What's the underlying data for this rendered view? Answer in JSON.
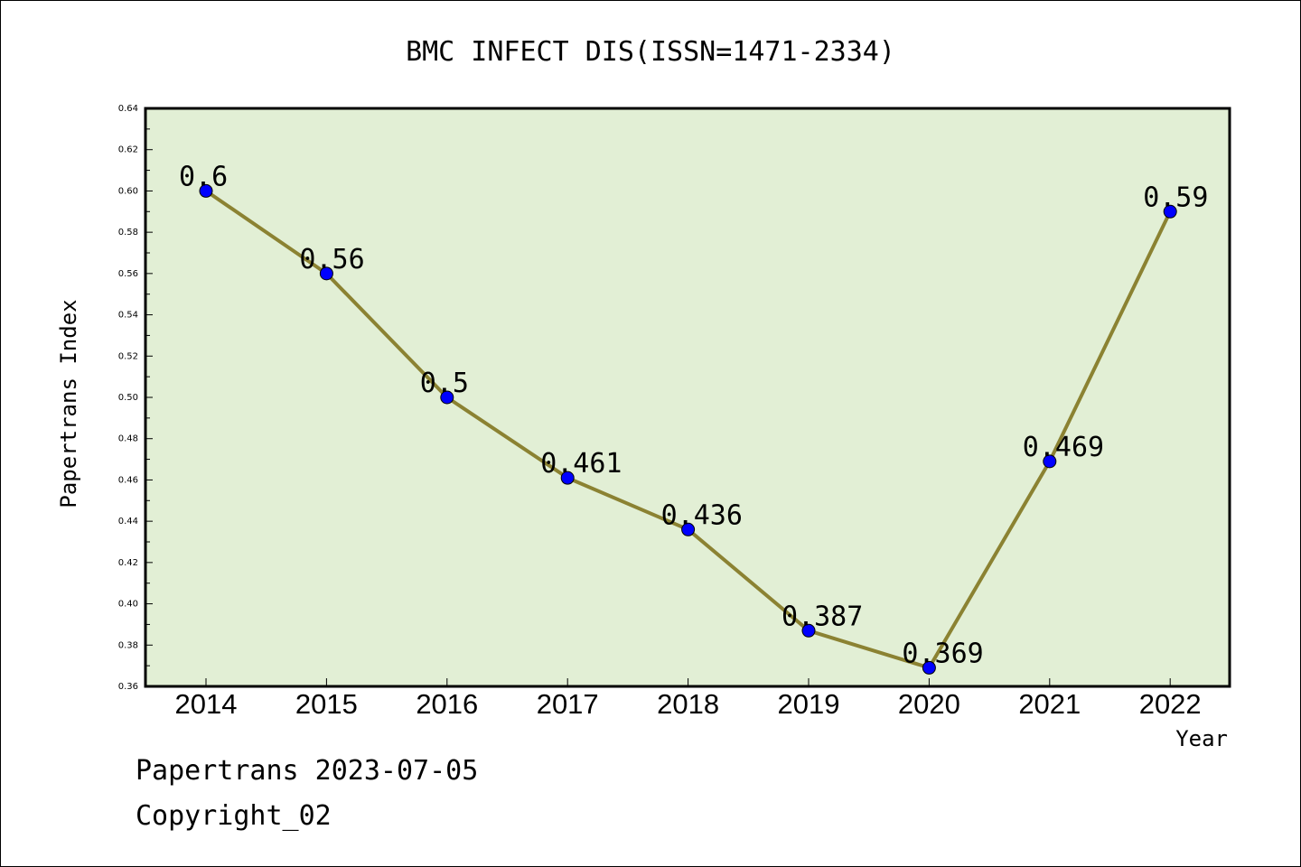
{
  "chart_data": {
    "type": "line",
    "title": "BMC INFECT DIS(ISSN=1471-2334)",
    "xlabel": "Year",
    "ylabel": "Papertrans Index",
    "categories": [
      "2014",
      "2015",
      "2016",
      "2017",
      "2018",
      "2019",
      "2020",
      "2021",
      "2022"
    ],
    "series": [
      {
        "values": [
          0.6,
          0.56,
          0.5,
          0.461,
          0.436,
          0.387,
          0.369,
          0.469,
          0.59
        ]
      }
    ],
    "data_labels": [
      "0.6",
      "0.56",
      "0.5",
      "0.461",
      "0.436",
      "0.387",
      "0.369",
      "0.469",
      "0.59"
    ],
    "ylim": [
      0.36,
      0.64
    ],
    "yticks": [
      "0.36",
      "0.38",
      "0.40",
      "0.42",
      "0.44",
      "0.46",
      "0.48",
      "0.50",
      "0.52",
      "0.54",
      "0.56",
      "0.58",
      "0.60",
      "0.62",
      "0.64"
    ],
    "grid": false,
    "legend": "none",
    "colors": {
      "plot_background": "#e2efd5",
      "line": "#8b8232",
      "marker": "#0000ff"
    }
  },
  "footer": {
    "line1": "Papertrans 2023-07-05",
    "line2": "Copyright_02"
  }
}
